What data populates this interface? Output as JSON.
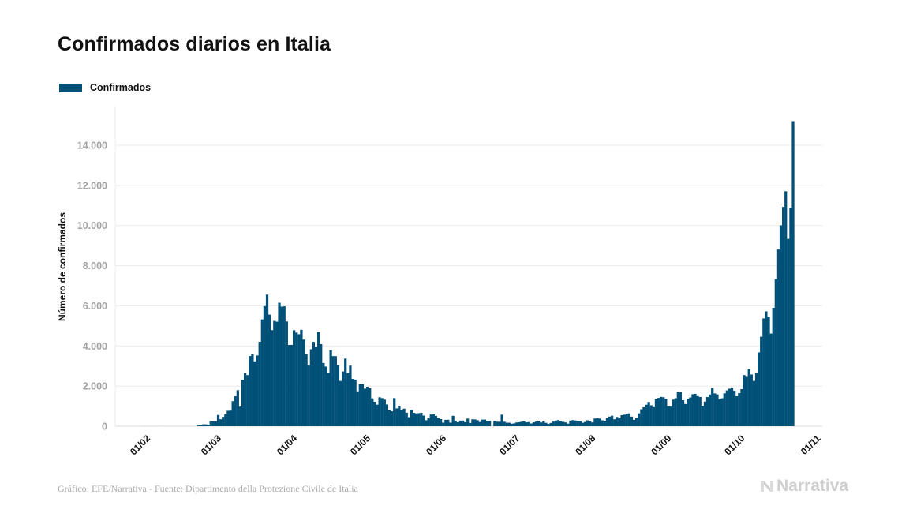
{
  "header": {
    "title": "Confirmados diarios en Italia"
  },
  "footer": {
    "source": "Gráfico: EFE/Narrativa - Fuente: Dipartimento della Protezione Civile de Italia",
    "brand": "Narrativa"
  },
  "colors": {
    "bar": "#015078",
    "grid": "#ebebeb",
    "axis_text": "#a3a3a3"
  },
  "chart_data": {
    "type": "bar",
    "title": "Confirmados diarios en Italia",
    "xlabel": "",
    "ylabel": "Número de confirmados",
    "legend": [
      {
        "name": "Confirmados",
        "color": "#015078"
      }
    ],
    "legend_position": "top-left",
    "grid": true,
    "ylim": [
      0,
      16000
    ],
    "yticks": [
      0,
      2000,
      4000,
      6000,
      8000,
      10000,
      12000,
      14000
    ],
    "ytick_labels": [
      "0",
      "2.000",
      "4.000",
      "6.000",
      "8.000",
      "10.000",
      "12.000",
      "14.000"
    ],
    "xtick_labels": [
      "01/02",
      "01/03",
      "01/04",
      "01/05",
      "01/06",
      "01/07",
      "01/08",
      "01/09",
      "01/10",
      "01/11"
    ],
    "x_start": "2020-01-31",
    "x_end": "2020-10-21",
    "series": [
      {
        "name": "Confirmados",
        "values": [
          3,
          0,
          0,
          0,
          0,
          0,
          1,
          0,
          0,
          0,
          0,
          0,
          0,
          0,
          0,
          0,
          0,
          0,
          0,
          0,
          0,
          14,
          62,
          53,
          97,
          93,
          78,
          250,
          238,
          240,
          561,
          347,
          466,
          587,
          769,
          778,
          1247,
          1492,
          1797,
          977,
          2313,
          2651,
          2547,
          3497,
          3590,
          3233,
          3526,
          4207,
          5322,
          5986,
          6557,
          5560,
          4789,
          5249,
          5210,
          6153,
          5959,
          5974,
          5217,
          4050,
          4053,
          4782,
          4668,
          4585,
          4805,
          4316,
          3599,
          3039,
          3836,
          4204,
          3951,
          4694,
          4092,
          3153,
          2972,
          2667,
          3786,
          3493,
          3491,
          3047,
          2256,
          2729,
          3370,
          2646,
          3021,
          2357,
          2324,
          1739,
          2091,
          2086,
          1872,
          1965,
          1900,
          1389,
          1221,
          1075,
          1444,
          1401,
          1327,
          1083,
          802,
          744,
          1402,
          888,
          992,
          789,
          875,
          675,
          451,
          813,
          665,
          642,
          652,
          669,
          531,
          300,
          397,
          584,
          593,
          516,
          416,
          355,
          178,
          318,
          321,
          177,
          518,
          270,
          197,
          280,
          283,
          202,
          379,
          163,
          346,
          338,
          301,
          210,
          329,
          333,
          251,
          264,
          0,
          262,
          224,
          221,
          577,
          223,
          175,
          174,
          126,
          142,
          187,
          201,
          223,
          235,
          192,
          208,
          138,
          193,
          229,
          276,
          188,
          234,
          169,
          114,
          163,
          230,
          282,
          306,
          252,
          219,
          190,
          129,
          282,
          306,
          289,
          275,
          255,
          170,
          212,
          295,
          239,
          190,
          384,
          402,
          379,
          295,
          259,
          412,
          481,
          523,
          347,
          463,
          401,
          552,
          574,
          629,
          642,
          479,
          320,
          403,
          642,
          845,
          947,
          1071,
          1210,
          1045,
          953,
          1367,
          1411,
          1462,
          1444,
          1365,
          996,
          978,
          1326,
          1397,
          1733,
          1695,
          1297,
          1108,
          1370,
          1434,
          1597,
          1616,
          1501,
          1458,
          1008,
          1229,
          1452,
          1585,
          1907,
          1638,
          1587,
          1350,
          1392,
          1640,
          1786,
          1869,
          1912,
          1766,
          1494,
          1648,
          1851,
          2548,
          2499,
          2843,
          2578,
          2257,
          2677,
          3678,
          4458,
          5372,
          5724,
          5456,
          4619,
          5901,
          7332,
          8804,
          10010,
          10925,
          11705,
          9338,
          10874,
          15199
        ]
      }
    ]
  }
}
